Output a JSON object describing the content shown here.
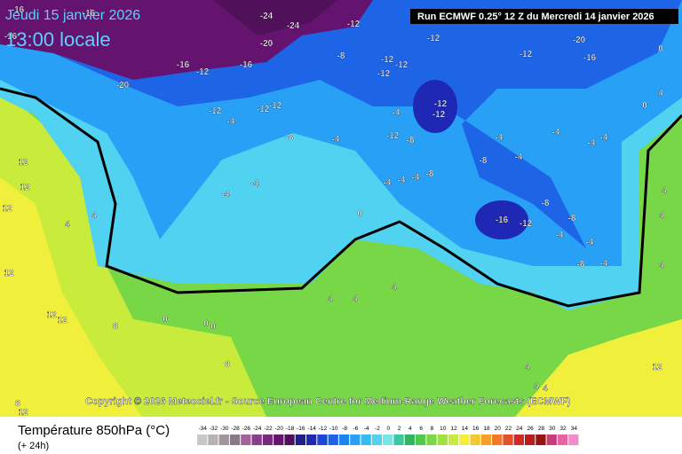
{
  "header": {
    "date": "Jeudi 15 janvier 2026",
    "time": "13:00 locale",
    "run": "Run ECMWF 0.25° 12 Z du Mercredi 14 janvier 2026"
  },
  "copyright": "Copyright © 2026 Meteociel.fr - Source European Centre for Medium-Range Weather Forecasts (ECMWF)",
  "legend": {
    "title": "Température 850hPa (°C)",
    "subtitle": "(+ 24h)",
    "ticks": [
      -34,
      -32,
      -30,
      -28,
      -26,
      -24,
      -22,
      -20,
      -18,
      -16,
      -14,
      -12,
      -10,
      -8,
      -6,
      -4,
      -2,
      0,
      2,
      4,
      6,
      8,
      10,
      12,
      14,
      16,
      18,
      20,
      22,
      24,
      26,
      28,
      30,
      32,
      34
    ],
    "colors": [
      "#c8c8c8",
      "#b4b4b4",
      "#a096a0",
      "#8c788c",
      "#a0649b",
      "#8c3c8c",
      "#78287d",
      "#64146e",
      "#50105a",
      "#1e1e8c",
      "#1e28b4",
      "#1e46d2",
      "#1e64e6",
      "#1e82f0",
      "#28a0f5",
      "#32bef5",
      "#50d2f0",
      "#78e6e6",
      "#3cc8a0",
      "#32b464",
      "#50c850",
      "#78d746",
      "#a0e13c",
      "#c8eb3c",
      "#f0f03c",
      "#f5c832",
      "#f5a028",
      "#f07828",
      "#e65028",
      "#d22828",
      "#b41e1e",
      "#961414",
      "#c83c78",
      "#e664a0",
      "#f08cc8"
    ]
  },
  "contour_labels": [
    "-16",
    "-16",
    "-16",
    "-24",
    "-24",
    "-12",
    "-20",
    "-12",
    "-20",
    "-16",
    "-12",
    "-8",
    "-12",
    "-12",
    "-12",
    "-16",
    "-12",
    "-16",
    "-20",
    "-12",
    "-4",
    "-12",
    "-12",
    "-8",
    "-4",
    "-4",
    "-12",
    "-12",
    "-12",
    "-8",
    "-8",
    "-4",
    "-4",
    "-4",
    "-8",
    "-4",
    "-4",
    "-4",
    "-4",
    "-4",
    "-16",
    "-12",
    "-8",
    "-8",
    "-4",
    "-4",
    "-8",
    "-4",
    "-4",
    "-4",
    "0",
    "4",
    "4",
    "12",
    "12",
    "12",
    "12",
    "12",
    "8",
    "0",
    "0",
    "0",
    "8",
    "4",
    "4",
    "4",
    "4",
    "4",
    "4",
    "12",
    "12",
    "8",
    "4",
    "4",
    "4",
    "4",
    "0",
    "0",
    "12"
  ]
}
